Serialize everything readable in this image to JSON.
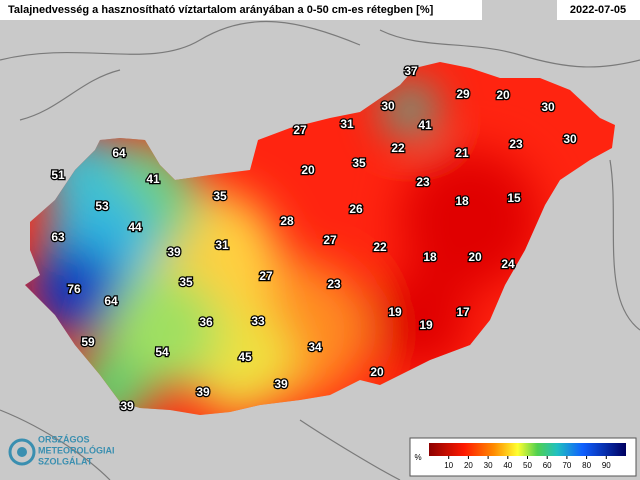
{
  "title": "Talajnedvesség a hasznosítható víztartalom arányában a 0-50 cm-es rétegben [%]",
  "date": "2022-07-05",
  "stations": [
    37,
    29,
    20,
    30,
    30,
    41,
    31,
    27,
    22,
    21,
    23,
    30,
    64,
    51,
    41,
    20,
    35,
    23,
    18,
    15,
    53,
    35,
    26,
    28,
    44,
    63,
    31,
    27,
    22,
    18,
    20,
    24,
    39,
    76,
    35,
    27,
    23,
    64,
    36,
    33,
    19,
    19,
    17,
    59,
    54,
    45,
    34,
    20,
    39,
    39,
    39
  ],
  "legend": {
    "unit": "%",
    "range": [
      0,
      100
    ],
    "ticks": [
      10,
      20,
      30,
      40,
      50,
      60,
      70,
      80,
      90
    ]
  },
  "logo": {
    "lines": [
      "ORSZÁGOS",
      "METEOROLÓGIAI",
      "SZOLGÁLAT"
    ]
  }
}
